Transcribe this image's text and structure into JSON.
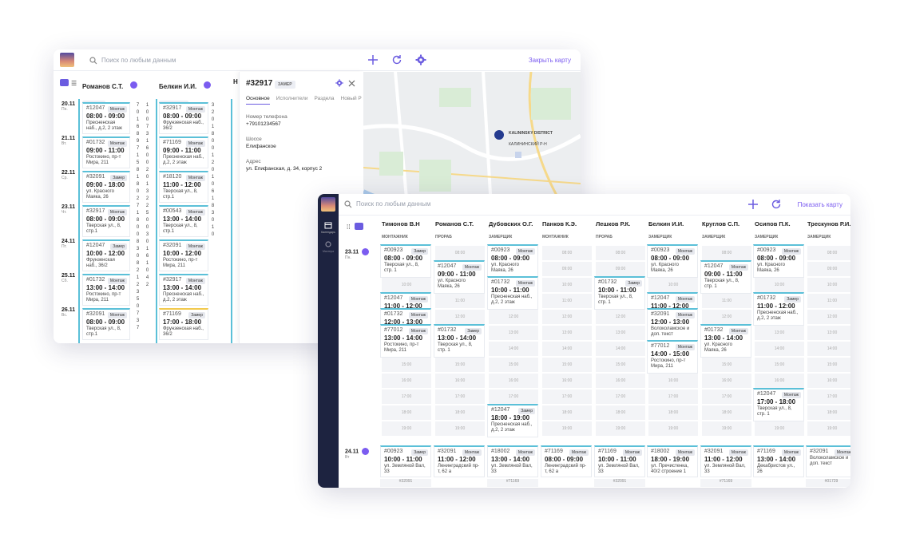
{
  "back": {
    "search_placeholder": "Поиск по любым данным",
    "close_map": "Закрыть карту",
    "columns": [
      {
        "name": "Романов С.Т.",
        "role": "ПРОРАБ"
      },
      {
        "name": "Белкин И.И.",
        "role": "ЗАМЕРЩИК"
      },
      {
        "name": "Н"
      }
    ],
    "dates": [
      {
        "d": "20.11",
        "w": "Пн."
      },
      {
        "d": "21.11",
        "w": "Вт."
      },
      {
        "d": "22.11",
        "w": "Ср."
      },
      {
        "d": "23.11",
        "w": "Чт."
      },
      {
        "d": "24.11",
        "w": "Пт."
      },
      {
        "d": "25.11",
        "w": "Сб."
      },
      {
        "d": "26.11",
        "w": "Вс."
      }
    ],
    "cards_a": [
      {
        "num": "#12047",
        "tag": "Монтаж",
        "time": "08:00 - 09:00",
        "addr": "Пресненская наб., д.2, 2 этаж"
      },
      {
        "num": "#01732",
        "tag": "Монтаж",
        "time": "09:00 - 11:00",
        "addr": "Ростокино, пр-т Мира, 211"
      },
      {
        "num": "#32091",
        "tag": "Замер",
        "time": "09:00 - 18:00",
        "addr": "ул. Красного Маяка, 26"
      },
      {
        "num": "#32917",
        "tag": "Монтаж",
        "time": "08:00 - 09:00",
        "addr": "Тверская ул., 8, стр.1"
      },
      {
        "num": "#12047",
        "tag": "Замер",
        "time": "10:00 - 12:00",
        "addr": "Фрунзенская наб., 36/2"
      },
      {
        "num": "#01732",
        "tag": "Монтаж",
        "time": "13:00 - 14:00",
        "addr": "Ростокино, пр-т Мира, 211"
      },
      {
        "num": "#32091",
        "tag": "Монтаж",
        "time": "08:00 - 09:00",
        "addr": "Тверская ул., 8, стр.1"
      }
    ],
    "cards_b": [
      {
        "num": "#32917",
        "tag": "Монтаж",
        "time": "08:00 - 09:00",
        "addr": "Фрунзенская наб., 36/2"
      },
      {
        "num": "#71169",
        "tag": "Монтаж",
        "time": "09:00 - 11:00",
        "addr": "Пресненская наб., д.2, 2 этаж"
      },
      {
        "num": "#18120",
        "tag": "Монтаж",
        "time": "11:00 - 12:00",
        "addr": "Тверская ул., 8, стр.1"
      },
      {
        "num": "#00543",
        "tag": "Монтаж",
        "time": "13:00 - 14:00",
        "addr": "Тверская ул., 8, стр.1"
      },
      {
        "num": "#32091",
        "tag": "Монтаж",
        "time": "10:00 - 12:00",
        "addr": "Ростокино, пр-т Мира, 211"
      },
      {
        "num": "#32917",
        "tag": "Монтаж",
        "time": "13:00 - 14:00",
        "addr": "Пресненская наб., д.2, 2 этаж"
      },
      {
        "num": "#71169",
        "tag": "Замер",
        "time": "17:00 - 18:00",
        "addr": "Фрунзенская наб., 36/2"
      }
    ],
    "digits_a": [
      "7",
      "0",
      "1",
      "6",
      "8",
      "9",
      "7",
      "1",
      "5",
      "8",
      "1",
      "8",
      "0",
      "2",
      "7",
      "1",
      "8",
      "0",
      "0",
      "8",
      "3",
      "0",
      "8",
      "2",
      "1",
      "2",
      "3",
      "5",
      "0",
      "7",
      "3",
      "7"
    ],
    "digits_b": [
      "1",
      "0",
      "0",
      "7",
      "3",
      "1",
      "6",
      "0",
      "0",
      "2",
      "0",
      "1",
      "3",
      "2",
      "2",
      "5",
      "0",
      "0",
      "3",
      "0",
      "1",
      "6",
      "1",
      "0",
      "4",
      "2"
    ],
    "digits_c": [
      "3",
      "2",
      "0",
      "1",
      "8",
      "0",
      "0",
      "1",
      "2",
      "0",
      "1",
      "0",
      "6",
      "1",
      "8",
      "3",
      "0",
      "1",
      "0"
    ],
    "detail": {
      "id": "#32917",
      "type": "ЗАМЕР",
      "tabs": [
        "Основное",
        "Исполнители",
        "Раздела",
        "Новый Р"
      ],
      "phone_label": "Номер телефона",
      "phone": "+79101234567",
      "road_label": "Шоссе",
      "road": "Елифанское",
      "addr_label": "Адрес",
      "addr": "ул. Епифанская, д. 34, корпус 2"
    },
    "map": {
      "district": "KALININSKY DISTRICT",
      "district_ru": "КАЛИНИНСКИЙ Р-Н"
    }
  },
  "front": {
    "search_placeholder": "Поиск по любым данным",
    "show_map": "Показать карту",
    "side": [
      "Календарь",
      "Мастера"
    ],
    "columns": [
      {
        "name": "Тимонов В.Н",
        "role": "МОНТАЖНИК"
      },
      {
        "name": "Романов С.Т.",
        "role": "ПРОРАБ"
      },
      {
        "name": "Дубовских О.Г.",
        "role": "ЗАМЕРЩИК"
      },
      {
        "name": "Панков К.Э.",
        "role": "МОНТАЖНИК"
      },
      {
        "name": "Лешков Р.К.",
        "role": "ПРОРАБ"
      },
      {
        "name": "Белкин И.И.",
        "role": "ЗАМЕРЩИК"
      },
      {
        "name": "Круглов С.П.",
        "role": "ЗАМЕРЩИК"
      },
      {
        "name": "Осипов П.К.",
        "role": "ЗАМЕРЩИК"
      },
      {
        "name": "Трескунов Р.И.",
        "role": "ЗАМЕРЩИК"
      }
    ],
    "dates": [
      {
        "d": "23.11",
        "w": "Пн."
      },
      {
        "d": "24.11",
        "w": "Вт"
      }
    ],
    "cards": [
      {
        "c": 0,
        "num": "#00923",
        "tag": "Замер",
        "time": "08:00 - 09:00",
        "addr": "Тверская ул., 8, стр. 1"
      },
      {
        "c": 0,
        "num": "#12047",
        "tag": "Монтаж",
        "time": "11:00 - 12:00",
        "addr": "ул. Красного Маяка, 26"
      },
      {
        "c": 0,
        "num": "#01732",
        "tag": "Монтаж",
        "time": "12:00 - 13:00",
        "addr": "Пресненская наб., д.2, 2 этаж"
      },
      {
        "c": 0,
        "num": "#77012",
        "tag": "Монтаж",
        "time": "13:00 - 14:00",
        "addr": "Ростокино, пр-т Мира, 211"
      },
      {
        "c": 1,
        "num": "#12047",
        "tag": "Монтаж",
        "time": "09:00 - 11:00",
        "addr": "ул. Красного Маяка, 26"
      },
      {
        "c": 1,
        "num": "#01732",
        "tag": "Замер",
        "time": "13:00 - 14:00",
        "addr": "Тверская ул., 8, стр. 1"
      },
      {
        "c": 2,
        "num": "#00923",
        "tag": "Монтаж",
        "time": "08:00 - 09:00",
        "addr": "ул. Красного Маяка, 26"
      },
      {
        "c": 2,
        "num": "#01732",
        "tag": "Монтаж",
        "time": "10:00 - 11:00",
        "addr": "Пресненская наб., д.2, 2 этаж"
      },
      {
        "c": 2,
        "num": "#12047",
        "tag": "Замер",
        "time": "18:00 - 19:00",
        "addr": "Пресненская наб., д.2, 2 этаж"
      },
      {
        "c": 4,
        "num": "#01732",
        "tag": "Замер",
        "time": "10:00 - 11:00",
        "addr": "Тверская ул., 8, стр. 1"
      },
      {
        "c": 5,
        "num": "#00923",
        "tag": "Монтаж",
        "time": "08:00 - 09:00",
        "addr": "ул. Красного Маяка, 26"
      },
      {
        "c": 5,
        "num": "#12047",
        "tag": "Монтаж",
        "time": "11:00 - 12:00",
        "addr": "Пресненская наб., д.2, 2 этаж"
      },
      {
        "c": 5,
        "num": "#32091",
        "tag": "Монтаж",
        "time": "12:00 - 13:00",
        "addr": "Волоколамское и доп. текст"
      },
      {
        "c": 5,
        "num": "#77012",
        "tag": "Монтаж",
        "time": "14:00 - 15:00",
        "addr": "Ростокино, пр-т Мира, 211"
      },
      {
        "c": 6,
        "num": "#12047",
        "tag": "Монтаж",
        "time": "09:00 - 11:00",
        "addr": "Тверская ул., 8, стр. 1"
      },
      {
        "c": 6,
        "num": "#01732",
        "tag": "Монтаж",
        "time": "13:00 - 14:00",
        "addr": "ул. Красного Маяка, 26"
      },
      {
        "c": 7,
        "num": "#00923",
        "tag": "Монтаж",
        "time": "08:00 - 09:00",
        "addr": "ул. Красного Маяка, 26"
      },
      {
        "c": 7,
        "num": "#01732",
        "tag": "Замер",
        "time": "11:00 - 12:00",
        "addr": "Пресненская наб., д.2, 2 этаж"
      },
      {
        "c": 7,
        "num": "#12047",
        "tag": "Монтаж",
        "time": "17:00 - 18:00",
        "addr": "Тверская ул., 8, стр. 1"
      }
    ],
    "cards2": [
      {
        "num": "#00923",
        "tag": "Замер",
        "time": "10:00 - 11:00",
        "addr": "ул. Земляной Вал, 33",
        "foot": "#32091"
      },
      {
        "num": "#32091",
        "tag": "Монтаж",
        "time": "11:00 - 12:00",
        "addr": "Ленинградский пр-т, 62 а",
        "foot": ""
      },
      {
        "num": "#18002",
        "tag": "Монтаж",
        "time": "13:00 - 14:00",
        "addr": "ул. Земляной Вал, 33",
        "foot": "#71169"
      },
      {
        "num": "#71169",
        "tag": "Монтаж",
        "time": "08:00 - 09:00",
        "addr": "Ленинградский пр-т, 62 а",
        "foot": ""
      },
      {
        "num": "#71169",
        "tag": "Монтаж",
        "time": "10:00 - 11:00",
        "addr": "ул. Земляной Вал, 33",
        "foot": "#32091"
      },
      {
        "num": "#18002",
        "tag": "Монтаж",
        "time": "18:00 - 19:00",
        "addr": "ул. Пречистенка, 40/2 строение 1",
        "foot": ""
      },
      {
        "num": "#32091",
        "tag": "Монтаж",
        "time": "11:00 - 12:00",
        "addr": "ул. Земляной Вал, 33",
        "foot": "#71169"
      },
      {
        "num": "#71169",
        "tag": "Монтаж",
        "time": "13:00 - 14:00",
        "addr": "Декабристов ул., 26",
        "foot": ""
      },
      {
        "num": "#32091",
        "tag": "Монтаж",
        "time": "",
        "addr": "Волоколамское и доп. текст",
        "foot": "#01729"
      }
    ],
    "slots": [
      "08:00",
      "09:00",
      "10:00",
      "11:00",
      "12:00",
      "13:00",
      "14:00",
      "15:00",
      "16:00",
      "17:00",
      "18:00",
      "19:00"
    ]
  }
}
